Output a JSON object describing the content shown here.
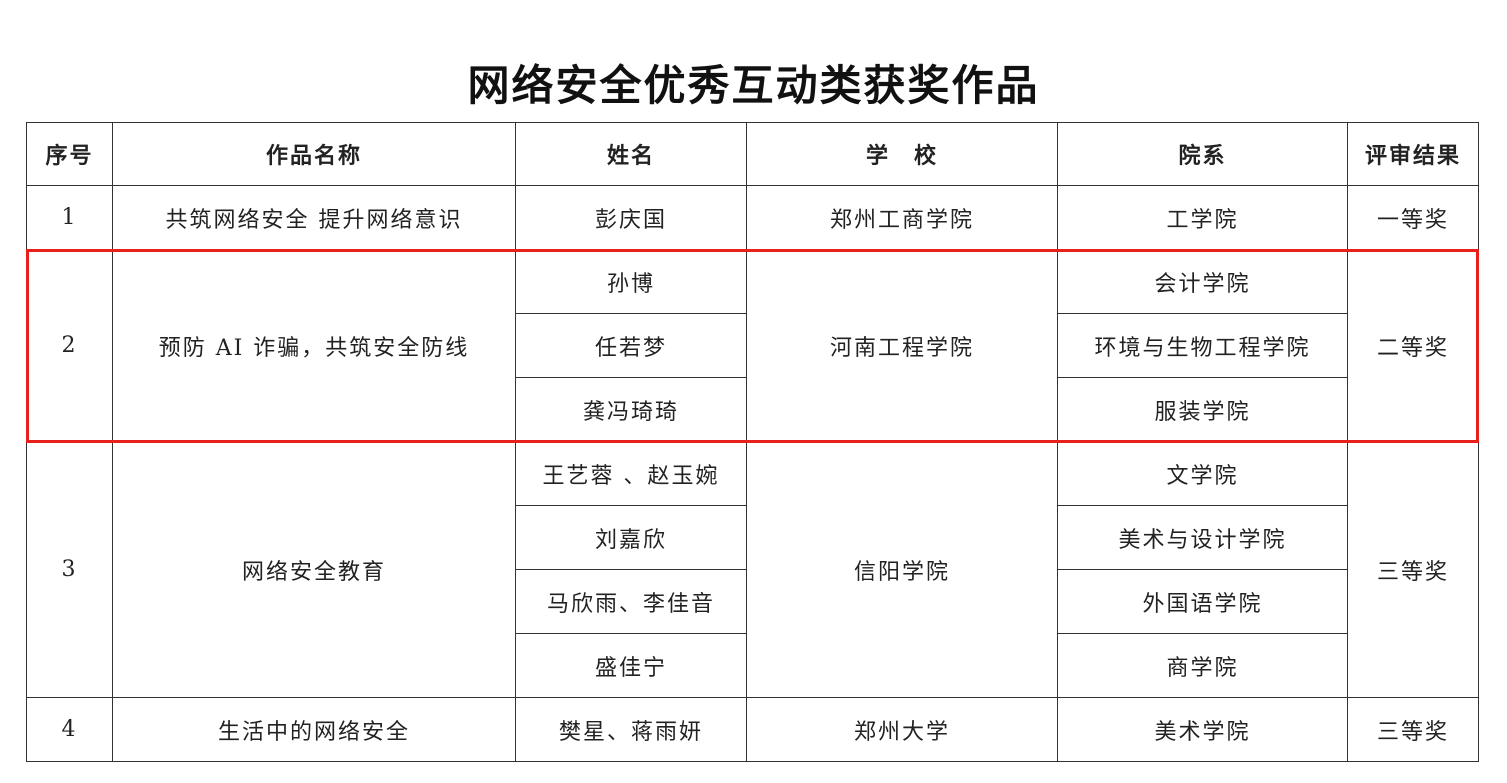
{
  "title": "网络安全优秀互动类获奖作品",
  "headers": [
    "序号",
    "作品名称",
    "姓名",
    "学　校",
    "院系",
    "评审结果"
  ],
  "rows": [
    {
      "no": "1",
      "work": "共筑网络安全 提升网络意识",
      "school": "郑州工商学院",
      "result": "一等奖",
      "members": [
        {
          "name": "彭庆国",
          "dept": "工学院"
        }
      ]
    },
    {
      "no": "2",
      "work": "预防 AI 诈骗，共筑安全防线",
      "school": "河南工程学院",
      "result": "二等奖",
      "members": [
        {
          "name": "孙博",
          "dept": "会计学院"
        },
        {
          "name": "任若梦",
          "dept": "环境与生物工程学院"
        },
        {
          "name": "龚冯琦琦",
          "dept": "服装学院"
        }
      ]
    },
    {
      "no": "3",
      "work": "网络安全教育",
      "school": "信阳学院",
      "result": "三等奖",
      "members": [
        {
          "name": "王艺蓉 、赵玉婉",
          "dept": "文学院"
        },
        {
          "name": "刘嘉欣",
          "dept": "美术与设计学院"
        },
        {
          "name": "马欣雨、李佳音",
          "dept": "外国语学院"
        },
        {
          "name": "盛佳宁",
          "dept": "商学院"
        }
      ]
    },
    {
      "no": "4",
      "work": "生活中的网络安全",
      "school": "郑州大学",
      "result": "三等奖",
      "members": [
        {
          "name": "樊星、蒋雨妍",
          "dept": "美术学院"
        }
      ]
    }
  ],
  "highlight_color": "#e8201c"
}
